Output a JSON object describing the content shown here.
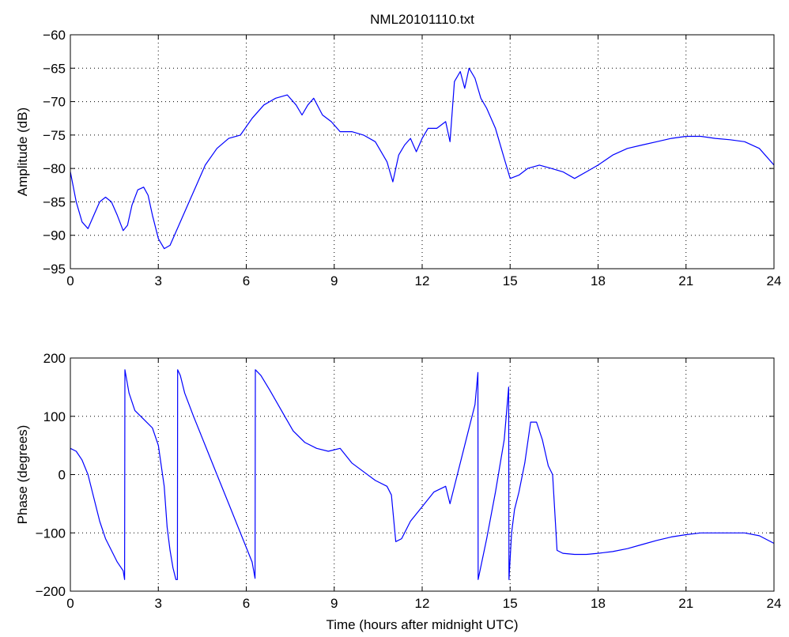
{
  "figure": {
    "title": "NML20101110.txt",
    "xlabel": "Time (hours after midnight UTC)"
  },
  "chart_data": [
    {
      "type": "line",
      "title": "NML20101110.txt",
      "xlabel": "",
      "ylabel": "Amplitude (dB)",
      "xlim": [
        0,
        24
      ],
      "ylim": [
        -95,
        -60
      ],
      "xticks": [
        "0",
        "3",
        "6",
        "9",
        "12",
        "15",
        "18",
        "21",
        "24"
      ],
      "yticks": [
        "-95",
        "-90",
        "-85",
        "-80",
        "-75",
        "-70",
        "-65",
        "-60"
      ],
      "grid": true,
      "line_color": "#0000ff",
      "series": [
        {
          "x": [
            0,
            0.2,
            0.4,
            0.6,
            0.8,
            1.0,
            1.2,
            1.4,
            1.6,
            1.8,
            1.95,
            2.1,
            2.3,
            2.5,
            2.65,
            2.8,
            3.0,
            3.2,
            3.4,
            3.6,
            3.8,
            4.0,
            4.3,
            4.6,
            5.0,
            5.4,
            5.8,
            6.2,
            6.6,
            7.0,
            7.4,
            7.7,
            7.9,
            8.1,
            8.3,
            8.6,
            8.9,
            9.2,
            9.6,
            10.0,
            10.4,
            10.8,
            11.0,
            11.2,
            11.4,
            11.6,
            11.8,
            12.0,
            12.2,
            12.5,
            12.8,
            12.95,
            13.1,
            13.3,
            13.45,
            13.6,
            13.8,
            14.0,
            14.2,
            14.5,
            14.8,
            15.0,
            15.3,
            15.6,
            16.0,
            16.4,
            16.8,
            17.2,
            17.6,
            18.0,
            18.5,
            19.0,
            19.5,
            20.0,
            20.5,
            21.0,
            21.5,
            22.0,
            22.5,
            23.0,
            23.5,
            24.0
          ],
          "y": [
            -80.5,
            -85,
            -88,
            -89,
            -87,
            -85,
            -84.3,
            -85,
            -87,
            -89.3,
            -88.5,
            -85.5,
            -83.2,
            -82.8,
            -84,
            -87,
            -90.5,
            -92,
            -91.5,
            -89.5,
            -87.5,
            -85.5,
            -82.5,
            -79.5,
            -77,
            -75.5,
            -75,
            -72.5,
            -70.5,
            -69.5,
            -69,
            -70.5,
            -72,
            -70.5,
            -69.5,
            -72,
            -73,
            -74.5,
            -74.5,
            -75,
            -76,
            -79,
            -82,
            -78,
            -76.5,
            -75.5,
            -77.5,
            -75.5,
            -74,
            -74,
            -73,
            -76,
            -67,
            -65.5,
            -68,
            -65,
            -66.5,
            -69.5,
            -71,
            -74,
            -78.5,
            -81.5,
            -81,
            -80,
            -79.5,
            -80,
            -80.5,
            -81.5,
            -80.5,
            -79.5,
            -78,
            -77,
            -76.5,
            -76,
            -75.5,
            -75.2,
            -75.2,
            -75.5,
            -75.7,
            -76,
            -77,
            -79.5
          ]
        }
      ]
    },
    {
      "type": "line",
      "title": "",
      "xlabel": "Time (hours after midnight UTC)",
      "ylabel": "Phase (degrees)",
      "xlim": [
        0,
        24
      ],
      "ylim": [
        -200,
        200
      ],
      "xticks": [
        "0",
        "3",
        "6",
        "9",
        "12",
        "15",
        "18",
        "21",
        "24"
      ],
      "yticks": [
        "-200",
        "-100",
        "0",
        "100",
        "200"
      ],
      "grid": true,
      "line_color": "#0000ff",
      "series": [
        {
          "x": [
            0,
            0.2,
            0.4,
            0.6,
            0.8,
            1.0,
            1.2,
            1.4,
            1.6,
            1.8,
            1.85,
            1.86,
            2.0,
            2.2,
            2.5,
            2.8,
            3.0,
            3.2,
            3.3,
            3.4,
            3.5,
            3.6,
            3.65,
            3.66,
            3.75,
            3.9,
            4.2,
            4.6,
            5.0,
            5.4,
            5.8,
            6.2,
            6.3,
            6.31,
            6.5,
            6.8,
            7.2,
            7.6,
            8.0,
            8.4,
            8.8,
            9.2,
            9.6,
            10.0,
            10.4,
            10.8,
            10.95,
            11.1,
            11.3,
            11.6,
            12.0,
            12.4,
            12.8,
            12.95,
            13.2,
            13.5,
            13.8,
            13.9,
            13.91,
            14.2,
            14.5,
            14.8,
            14.95,
            14.96,
            15.05,
            15.15,
            15.3,
            15.5,
            15.7,
            15.9,
            16.1,
            16.3,
            16.45,
            16.6,
            16.8,
            17.2,
            17.6,
            18.0,
            18.5,
            19.0,
            19.5,
            20.0,
            20.5,
            21.0,
            21.5,
            22.0,
            22.5,
            23.0,
            23.5,
            24.0
          ],
          "y": [
            45,
            40,
            25,
            0,
            -40,
            -80,
            -110,
            -130,
            -150,
            -165,
            -180,
            180,
            140,
            110,
            95,
            80,
            50,
            -20,
            -90,
            -130,
            -160,
            -180,
            -180,
            180,
            170,
            140,
            100,
            50,
            0,
            -50,
            -100,
            -150,
            -178,
            180,
            170,
            145,
            110,
            75,
            55,
            45,
            40,
            45,
            20,
            5,
            -10,
            -20,
            -35,
            -115,
            -110,
            -80,
            -55,
            -30,
            -20,
            -50,
            0,
            60,
            120,
            175,
            -180,
            -110,
            -30,
            60,
            150,
            -180,
            -100,
            -60,
            -30,
            20,
            90,
            90,
            60,
            15,
            0,
            -130,
            -135,
            -137,
            -137,
            -135,
            -132,
            -127,
            -120,
            -113,
            -107,
            -103,
            -100,
            -100,
            -100,
            -100,
            -105,
            -118
          ]
        }
      ]
    }
  ]
}
